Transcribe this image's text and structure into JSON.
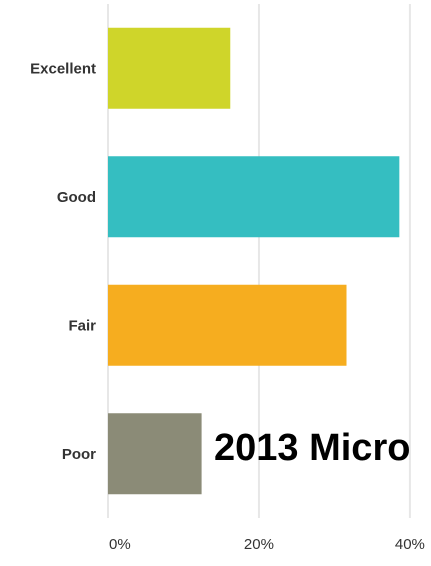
{
  "chart_data": {
    "type": "bar",
    "orientation": "horizontal",
    "categories": [
      "Excellent",
      "Good",
      "Fair",
      "Poor"
    ],
    "values": [
      16.2,
      38.6,
      31.6,
      12.4
    ],
    "value_unit": "%",
    "xlim": [
      0,
      42
    ],
    "x_ticks": [
      0,
      20,
      40
    ],
    "x_tick_labels": [
      "0%",
      "20%",
      "40%"
    ],
    "grid": true,
    "colors": [
      "#cfd52a",
      "#35bec1",
      "#f6ad1f",
      "#8b8b77"
    ],
    "title": "",
    "xlabel": "",
    "ylabel": ""
  },
  "overlay": {
    "text": "2013 Micro"
  },
  "colors": {
    "background": "#ffffff",
    "gridline": "#e7e7e7",
    "axis_text": "#333333"
  }
}
